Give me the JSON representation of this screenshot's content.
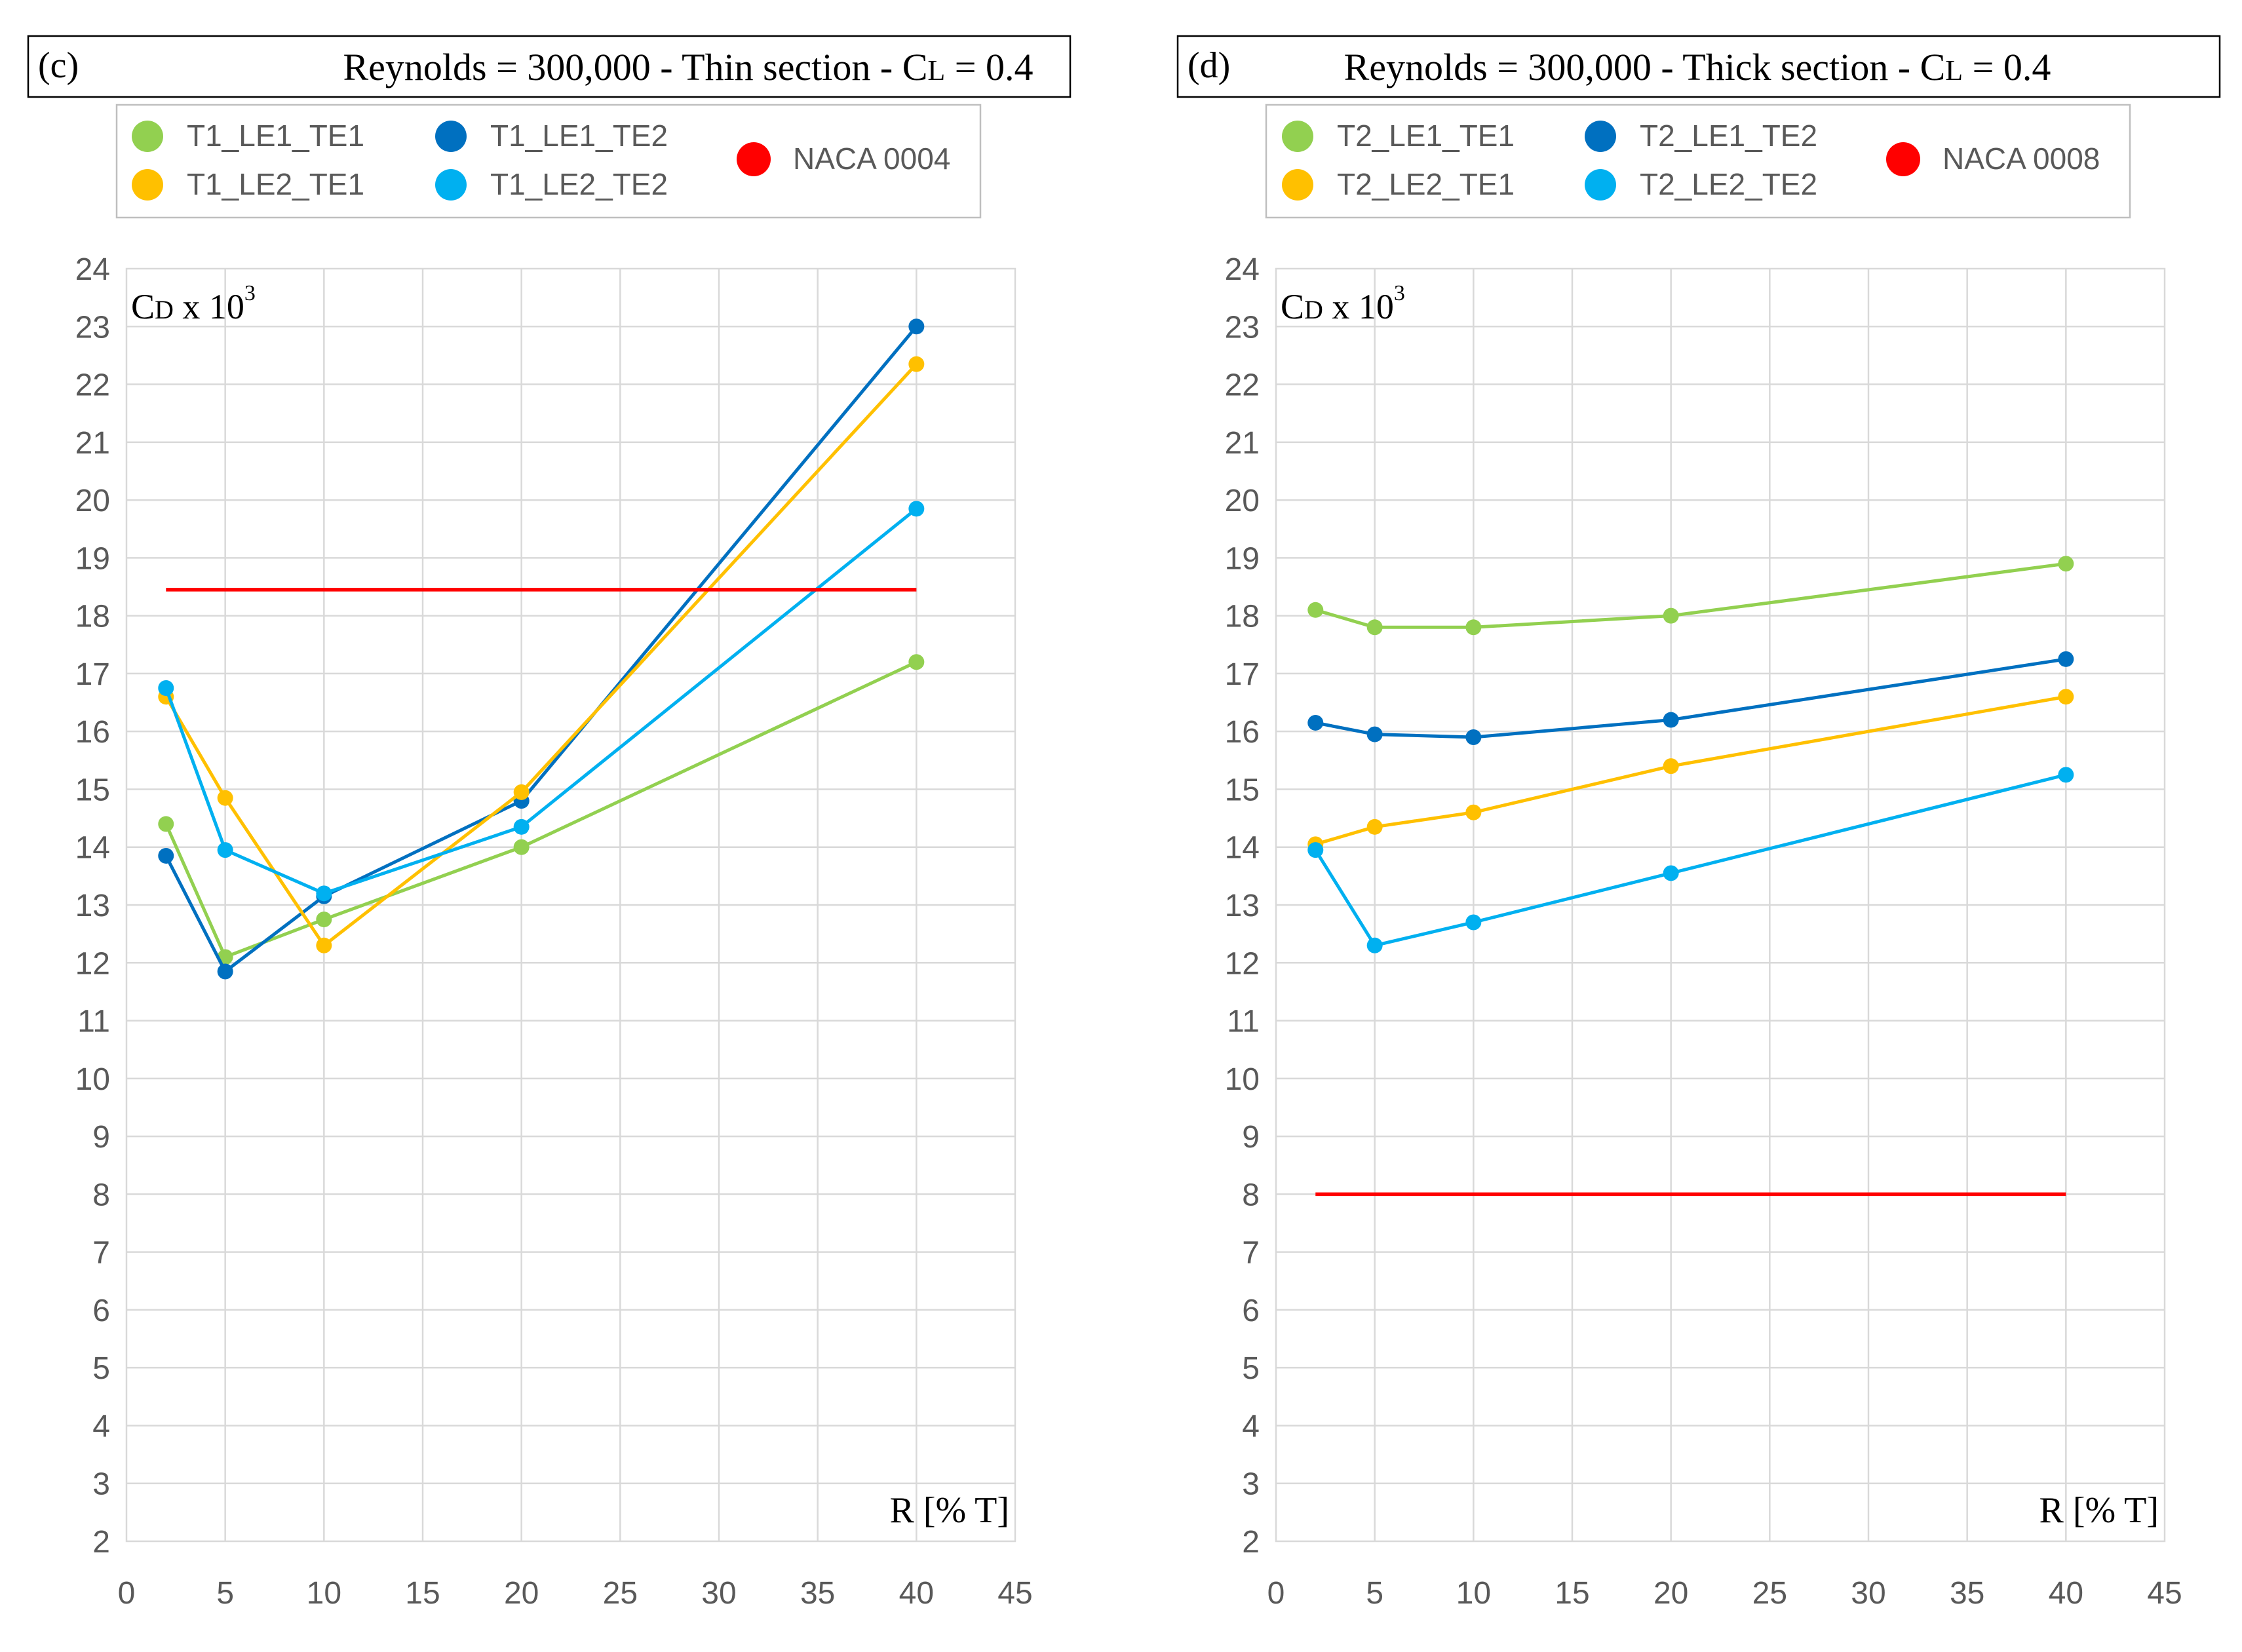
{
  "chart_data": [
    {
      "id": "c",
      "type": "line",
      "panel_label": "(c)",
      "title_parts": {
        "pre": "Reynolds = 300,000 - Thin section - C",
        "sub": "L",
        "post": " = 0.4"
      },
      "ylabel": {
        "main": "C",
        "sub": "D",
        "rest": " x 10",
        "sup": "3"
      },
      "xlabel": "R [% T]",
      "xlim": [
        0,
        45
      ],
      "ylim": [
        2,
        24
      ],
      "xticks": [
        0,
        5,
        10,
        15,
        20,
        25,
        30,
        35,
        40,
        45
      ],
      "yticks": [
        2,
        3,
        4,
        5,
        6,
        7,
        8,
        9,
        10,
        11,
        12,
        13,
        14,
        15,
        16,
        17,
        18,
        19,
        20,
        21,
        22,
        23,
        24
      ],
      "grid": true,
      "x": [
        2,
        5,
        10,
        20,
        40
      ],
      "series": [
        {
          "name": "T1_LE1_TE1",
          "color": "#92D050",
          "markers": true,
          "values": [
            14.4,
            12.1,
            12.75,
            14.0,
            17.2
          ]
        },
        {
          "name": "T1_LE1_TE2",
          "color": "#0070C0",
          "markers": true,
          "values": [
            13.85,
            11.85,
            13.15,
            14.8,
            23.0
          ]
        },
        {
          "name": "T1_LE2_TE1",
          "color": "#FFC000",
          "markers": true,
          "values": [
            16.6,
            14.85,
            12.3,
            14.95,
            22.35
          ]
        },
        {
          "name": "T1_LE2_TE2",
          "color": "#00B0F0",
          "markers": true,
          "values": [
            16.75,
            13.95,
            13.2,
            14.35,
            19.85
          ]
        },
        {
          "name": "NACA 0004",
          "color": "#FF0000",
          "markers": false,
          "x": [
            2,
            40
          ],
          "values": [
            18.45,
            18.45
          ]
        }
      ]
    },
    {
      "id": "d",
      "type": "line",
      "panel_label": "(d)",
      "title_parts": {
        "pre": "Reynolds = 300,000 - Thick section - C",
        "sub": "L",
        "post": " = 0.4"
      },
      "ylabel": {
        "main": "C",
        "sub": "D",
        "rest": " x 10",
        "sup": "3"
      },
      "xlabel": "R [% T]",
      "xlim": [
        0,
        45
      ],
      "ylim": [
        2,
        24
      ],
      "xticks": [
        0,
        5,
        10,
        15,
        20,
        25,
        30,
        35,
        40,
        45
      ],
      "yticks": [
        2,
        3,
        4,
        5,
        6,
        7,
        8,
        9,
        10,
        11,
        12,
        13,
        14,
        15,
        16,
        17,
        18,
        19,
        20,
        21,
        22,
        23,
        24
      ],
      "grid": true,
      "x": [
        2,
        5,
        10,
        20,
        40
      ],
      "series": [
        {
          "name": "T2_LE1_TE1",
          "color": "#92D050",
          "markers": true,
          "values": [
            18.1,
            17.8,
            17.8,
            18.0,
            18.9
          ]
        },
        {
          "name": "T2_LE1_TE2",
          "color": "#0070C0",
          "markers": true,
          "values": [
            16.15,
            15.95,
            15.9,
            16.2,
            17.25
          ]
        },
        {
          "name": "T2_LE2_TE1",
          "color": "#FFC000",
          "markers": true,
          "values": [
            14.05,
            14.35,
            14.6,
            15.4,
            16.6
          ]
        },
        {
          "name": "T2_LE2_TE2",
          "color": "#00B0F0",
          "markers": true,
          "values": [
            13.95,
            12.3,
            12.7,
            13.55,
            15.25
          ]
        },
        {
          "name": "NACA 0008",
          "color": "#FF0000",
          "markers": false,
          "x": [
            2,
            40
          ],
          "values": [
            8.0,
            8.0
          ]
        }
      ]
    }
  ]
}
